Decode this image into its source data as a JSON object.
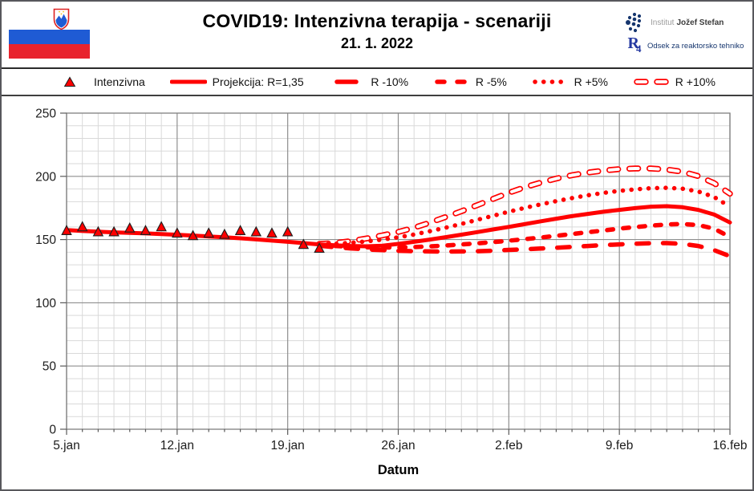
{
  "header": {
    "title": "COVID19: Intenzivna terapija - scenariji",
    "date": "21. 1. 2022",
    "org": {
      "institute_light": "Institut",
      "institute_bold": "Jožef Stefan",
      "dept_logo_letter": "R",
      "dept_logo_sub": "4",
      "dept_name": "Odsek za reaktorsko tehniko"
    }
  },
  "legend": {
    "items": [
      {
        "label": "Intenzivna",
        "style": "triangle"
      },
      {
        "label": "Projekcija: R=1,35",
        "style": "solid"
      },
      {
        "label": "R -10%",
        "style": "long-dash"
      },
      {
        "label": "R -5%",
        "style": "dash"
      },
      {
        "label": "R +5%",
        "style": "dot"
      },
      {
        "label": "R +10%",
        "style": "hollow-dash"
      }
    ]
  },
  "chart_data": {
    "type": "line",
    "title": "COVID19: Intenzivna terapija - scenariji",
    "subtitle": "21. 1. 2022",
    "xlabel": "Datum",
    "ylabel": "",
    "ylim": [
      0,
      250
    ],
    "y_major_ticks": [
      0,
      50,
      100,
      150,
      200,
      250
    ],
    "y_minor_step": 10,
    "x_range_days": [
      0,
      42
    ],
    "x_major_ticks": [
      {
        "day": 0,
        "label": "5.jan"
      },
      {
        "day": 7,
        "label": "12.jan"
      },
      {
        "day": 14,
        "label": "19.jan"
      },
      {
        "day": 21,
        "label": "26.jan"
      },
      {
        "day": 28,
        "label": "2.feb"
      },
      {
        "day": 35,
        "label": "9.feb"
      },
      {
        "day": 42,
        "label": "16.feb"
      }
    ],
    "x_minor_step_days": 1,
    "grid": true,
    "legend_position": "top",
    "colors": {
      "red": "#ff0000",
      "marker_edge": "#1f1f1f",
      "grid_minor": "#d9d9d9",
      "grid_major": "#8f8f8f",
      "axis": "#7f7f7f",
      "tick": "#595959",
      "flag_blue": "#1f5bd4",
      "flag_red": "#e8232d",
      "logo_navy": "#16366e"
    },
    "series": [
      {
        "name": "Intenzivna",
        "kind": "scatter",
        "marker": "triangle",
        "day_start": 0,
        "values": [
          157,
          160,
          156,
          156,
          159,
          157,
          160,
          155,
          153,
          155,
          154,
          157,
          156,
          155,
          156,
          146,
          143
        ]
      },
      {
        "name": "Projekcija: R=1,35",
        "kind": "line",
        "style": "solid",
        "day_start": 0,
        "values": [
          157.5,
          156.8,
          156.2,
          155.7,
          155.3,
          154.9,
          154.4,
          153.8,
          153.2,
          152.5,
          151.8,
          151.0,
          150.1,
          149.2,
          148.2,
          147.2,
          146.2,
          145.4,
          144.9,
          144.7,
          145.2,
          146.6,
          148.2,
          150.0,
          151.9,
          153.9,
          155.9,
          158.0,
          160.0,
          162.2,
          164.4,
          166.5,
          168.5,
          170.3,
          172.0,
          173.5,
          174.9,
          176.0,
          176.4,
          175.6,
          173.5,
          169.8,
          163.5
        ]
      },
      {
        "name": "R -10%",
        "kind": "line",
        "style": "long-dash",
        "day_start": 16,
        "values": [
          145.1,
          144.0,
          143.0,
          142.2,
          141.6,
          141.1,
          140.8,
          140.6,
          140.5,
          140.6,
          140.8,
          141.2,
          141.8,
          142.3,
          142.9,
          143.5,
          144.2,
          144.9,
          145.6,
          146.2,
          146.7,
          147.1,
          147.2,
          146.6,
          144.9,
          141.6,
          136.8
        ]
      },
      {
        "name": "R -5%",
        "kind": "line",
        "style": "dash",
        "day_start": 16,
        "values": [
          145.6,
          144.9,
          144.3,
          143.9,
          143.7,
          143.8,
          144.1,
          144.6,
          145.3,
          146.1,
          147.0,
          148.0,
          149.1,
          150.3,
          151.6,
          153.0,
          154.4,
          155.8,
          157.2,
          158.6,
          159.9,
          161.0,
          161.9,
          162.3,
          161.5,
          158.6,
          152.0
        ]
      },
      {
        "name": "R +5%",
        "kind": "line",
        "style": "dot",
        "day_start": 16,
        "values": [
          146.2,
          146.6,
          147.4,
          148.6,
          150.0,
          151.8,
          154.0,
          156.6,
          159.4,
          162.4,
          165.6,
          168.8,
          172.0,
          175.0,
          177.8,
          180.4,
          182.8,
          185.0,
          186.9,
          188.5,
          189.7,
          190.6,
          190.9,
          190.2,
          188.0,
          183.6,
          176.0
        ]
      },
      {
        "name": "R +10%",
        "kind": "line",
        "style": "hollow-dash",
        "day_start": 16,
        "values": [
          146.5,
          147.3,
          148.8,
          150.9,
          153.3,
          156.0,
          159.3,
          163.4,
          167.8,
          172.4,
          177.2,
          182.1,
          187.0,
          191.3,
          195.0,
          198.2,
          200.9,
          203.0,
          204.6,
          205.7,
          206.2,
          206.2,
          205.4,
          203.6,
          200.2,
          194.6,
          186.3
        ]
      }
    ]
  }
}
